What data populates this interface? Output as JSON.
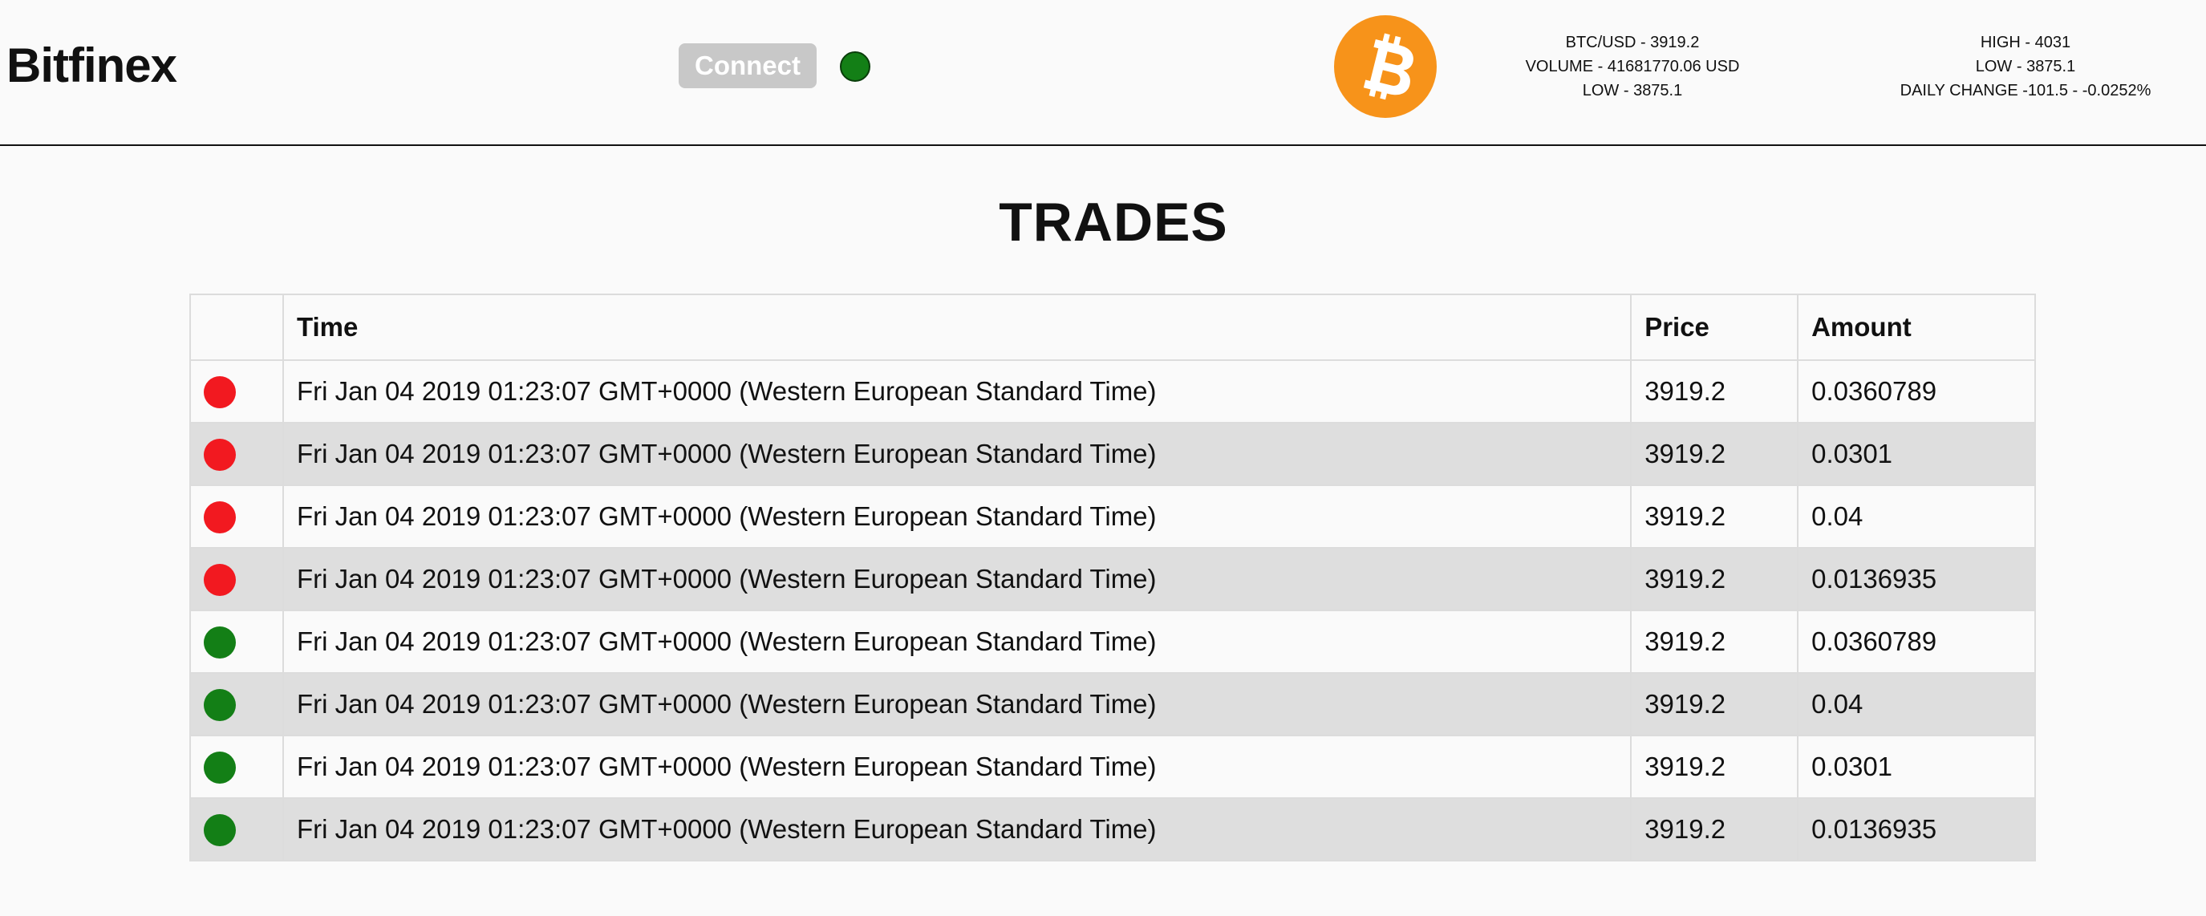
{
  "header": {
    "brand": "Bitfinex",
    "connect_label": "Connect",
    "connection_status": "connected",
    "status_color": "#137f16",
    "logo_icon": "bitcoin-icon",
    "logo_color": "#f7931a",
    "ticker_left": [
      "BTC/USD - 3919.2",
      "VOLUME - 41681770.06 USD",
      "LOW - 3875.1"
    ],
    "ticker_right": [
      "HIGH - 4031",
      "LOW - 3875.1",
      "DAILY CHANGE -101.5 - -0.0252%"
    ]
  },
  "trades": {
    "title": "TRADES",
    "columns": [
      "",
      "Time",
      "Price",
      "Amount"
    ],
    "sell_color": "#f21920",
    "buy_color": "#137f16",
    "rows": [
      {
        "side": "sell",
        "time": "Fri Jan 04 2019 01:23:07 GMT+0000 (Western European Standard Time)",
        "price": "3919.2",
        "amount": "0.0360789"
      },
      {
        "side": "sell",
        "time": "Fri Jan 04 2019 01:23:07 GMT+0000 (Western European Standard Time)",
        "price": "3919.2",
        "amount": "0.0301"
      },
      {
        "side": "sell",
        "time": "Fri Jan 04 2019 01:23:07 GMT+0000 (Western European Standard Time)",
        "price": "3919.2",
        "amount": "0.04"
      },
      {
        "side": "sell",
        "time": "Fri Jan 04 2019 01:23:07 GMT+0000 (Western European Standard Time)",
        "price": "3919.2",
        "amount": "0.0136935"
      },
      {
        "side": "buy",
        "time": "Fri Jan 04 2019 01:23:07 GMT+0000 (Western European Standard Time)",
        "price": "3919.2",
        "amount": "0.0360789"
      },
      {
        "side": "buy",
        "time": "Fri Jan 04 2019 01:23:07 GMT+0000 (Western European Standard Time)",
        "price": "3919.2",
        "amount": "0.04"
      },
      {
        "side": "buy",
        "time": "Fri Jan 04 2019 01:23:07 GMT+0000 (Western European Standard Time)",
        "price": "3919.2",
        "amount": "0.0301"
      },
      {
        "side": "buy",
        "time": "Fri Jan 04 2019 01:23:07 GMT+0000 (Western European Standard Time)",
        "price": "3919.2",
        "amount": "0.0136935"
      }
    ]
  }
}
